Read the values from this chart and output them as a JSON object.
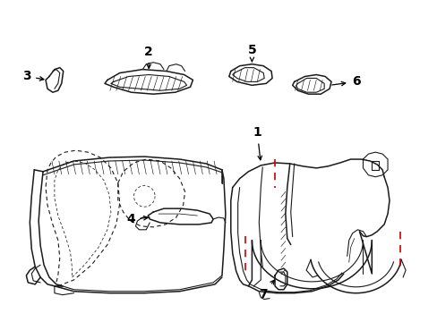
{
  "background": "#ffffff",
  "line_color": "#1a1a1a",
  "red_dash_color": "#cc0000",
  "label_color": "#000000",
  "lw_main": 1.1,
  "lw_med": 0.8,
  "lw_thin": 0.55,
  "lw_hatch": 0.45
}
